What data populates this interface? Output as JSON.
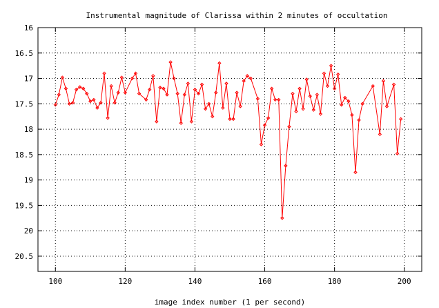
{
  "chart_data": {
    "type": "line",
    "title": "Instrumental magnitude of Clarissa within 2 minutes of occultation",
    "xlabel": "image index number (1 per second)",
    "ylabel": "",
    "xlim": [
      95,
      205
    ],
    "ylim": [
      16,
      20.8
    ],
    "y_inverted": true,
    "grid": true,
    "x_ticks": [
      100,
      120,
      140,
      160,
      180,
      200
    ],
    "y_ticks": [
      16,
      16.5,
      17,
      17.5,
      18,
      18.5,
      19,
      19.5,
      20,
      20.5
    ],
    "x_tick_labels": [
      "100",
      "120",
      "140",
      "160",
      "180",
      "200"
    ],
    "y_tick_labels": [
      "16",
      "16.5",
      "17",
      "17.5",
      "18",
      "18.5",
      "19",
      "19.5",
      "20",
      "20.5"
    ],
    "series_color": "#ff0000",
    "series": [
      {
        "x": [
          100,
          101,
          102,
          103,
          104,
          105,
          106,
          107,
          108,
          109,
          110,
          111,
          112,
          113,
          114,
          115,
          116,
          117,
          118,
          119,
          120,
          122,
          123,
          124,
          126,
          127,
          128,
          129,
          130,
          131,
          132,
          133,
          134,
          135,
          136,
          137,
          138,
          139,
          140,
          141,
          142,
          143,
          144,
          145,
          146,
          147,
          148,
          149,
          150,
          151,
          152,
          153,
          154,
          155,
          156,
          158,
          159,
          160,
          161,
          162,
          163,
          164,
          165,
          166,
          167,
          168,
          169,
          170,
          171,
          172,
          173,
          174,
          175,
          176,
          177,
          178,
          179,
          180,
          181,
          182,
          183,
          184,
          185,
          186,
          187,
          188,
          191,
          193,
          194,
          195,
          197,
          198,
          199
        ],
        "y": [
          17.52,
          17.32,
          16.98,
          17.2,
          17.5,
          17.48,
          17.22,
          17.17,
          17.2,
          17.3,
          17.45,
          17.42,
          17.58,
          17.48,
          16.9,
          17.78,
          17.15,
          17.48,
          17.28,
          16.98,
          17.28,
          17.0,
          16.9,
          17.3,
          17.42,
          17.22,
          16.95,
          17.85,
          17.18,
          17.2,
          17.32,
          16.68,
          17.0,
          17.3,
          17.88,
          17.32,
          17.1,
          17.85,
          17.22,
          17.3,
          17.12,
          17.6,
          17.5,
          17.75,
          17.28,
          16.7,
          17.58,
          17.1,
          17.8,
          17.8,
          17.28,
          17.55,
          17.05,
          16.95,
          17.0,
          17.4,
          18.3,
          17.92,
          17.78,
          17.2,
          17.42,
          17.42,
          19.75,
          18.72,
          17.95,
          17.3,
          17.65,
          17.2,
          17.6,
          17.02,
          17.35,
          17.62,
          17.32,
          17.7,
          16.9,
          17.15,
          16.75,
          17.2,
          16.92,
          17.52,
          17.38,
          17.45,
          17.72,
          18.85,
          17.82,
          17.5,
          17.15,
          18.1,
          17.05,
          17.55,
          17.12,
          18.48,
          17.8
        ]
      }
    ]
  }
}
